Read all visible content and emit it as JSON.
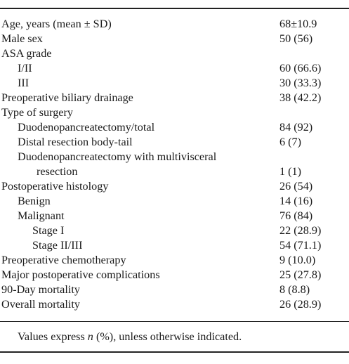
{
  "rows": [
    {
      "label": "Age, years (mean ± SD)",
      "value": "68±10.9",
      "indent": 0
    },
    {
      "label": "Male sex",
      "value": "50 (56)",
      "indent": 0
    },
    {
      "label": "ASA grade",
      "value": "",
      "indent": 0
    },
    {
      "label": "I/II",
      "value": "60 (66.6)",
      "indent": 1
    },
    {
      "label": "III",
      "value": "30 (33.3)",
      "indent": 1
    },
    {
      "label": "Preoperative biliary drainage",
      "value": "38 (42.2)",
      "indent": 0
    },
    {
      "label": "Type of surgery",
      "value": "",
      "indent": 0
    },
    {
      "label": "Duodenopancreatectomy/total",
      "value": "84 (92)",
      "indent": 1
    },
    {
      "label": "Distal resection body-tail",
      "value": "6 (7)",
      "indent": 1
    },
    {
      "label": "Duodenopancreatectomy with multivisceral",
      "label2": "resection",
      "value": "1 (1)",
      "indent": 1
    },
    {
      "label": "Postoperative histology",
      "value": "26 (54)",
      "indent": 0
    },
    {
      "label": "Benign",
      "value": "14 (16)",
      "indent": 1
    },
    {
      "label": "Malignant",
      "value": "76 (84)",
      "indent": 1
    },
    {
      "label": "Stage I",
      "value": "22 (28.9)",
      "indent": 2
    },
    {
      "label": "Stage II/III",
      "value": "54 (71.1)",
      "indent": 2
    },
    {
      "label": "Preoperative chemotherapy",
      "value": "9 (10.0)",
      "indent": 0
    },
    {
      "label": "Major postoperative complications",
      "value": "25 (27.8)",
      "indent": 0
    },
    {
      "label": "90-Day mortality",
      "value": "8 (8.8)",
      "indent": 0
    },
    {
      "label": "Overall mortality",
      "value": "26 (28.9)",
      "indent": 0
    }
  ],
  "footnote": {
    "prefix": "Values express ",
    "italic": "n",
    "suffix": " (%), unless otherwise indicated."
  }
}
